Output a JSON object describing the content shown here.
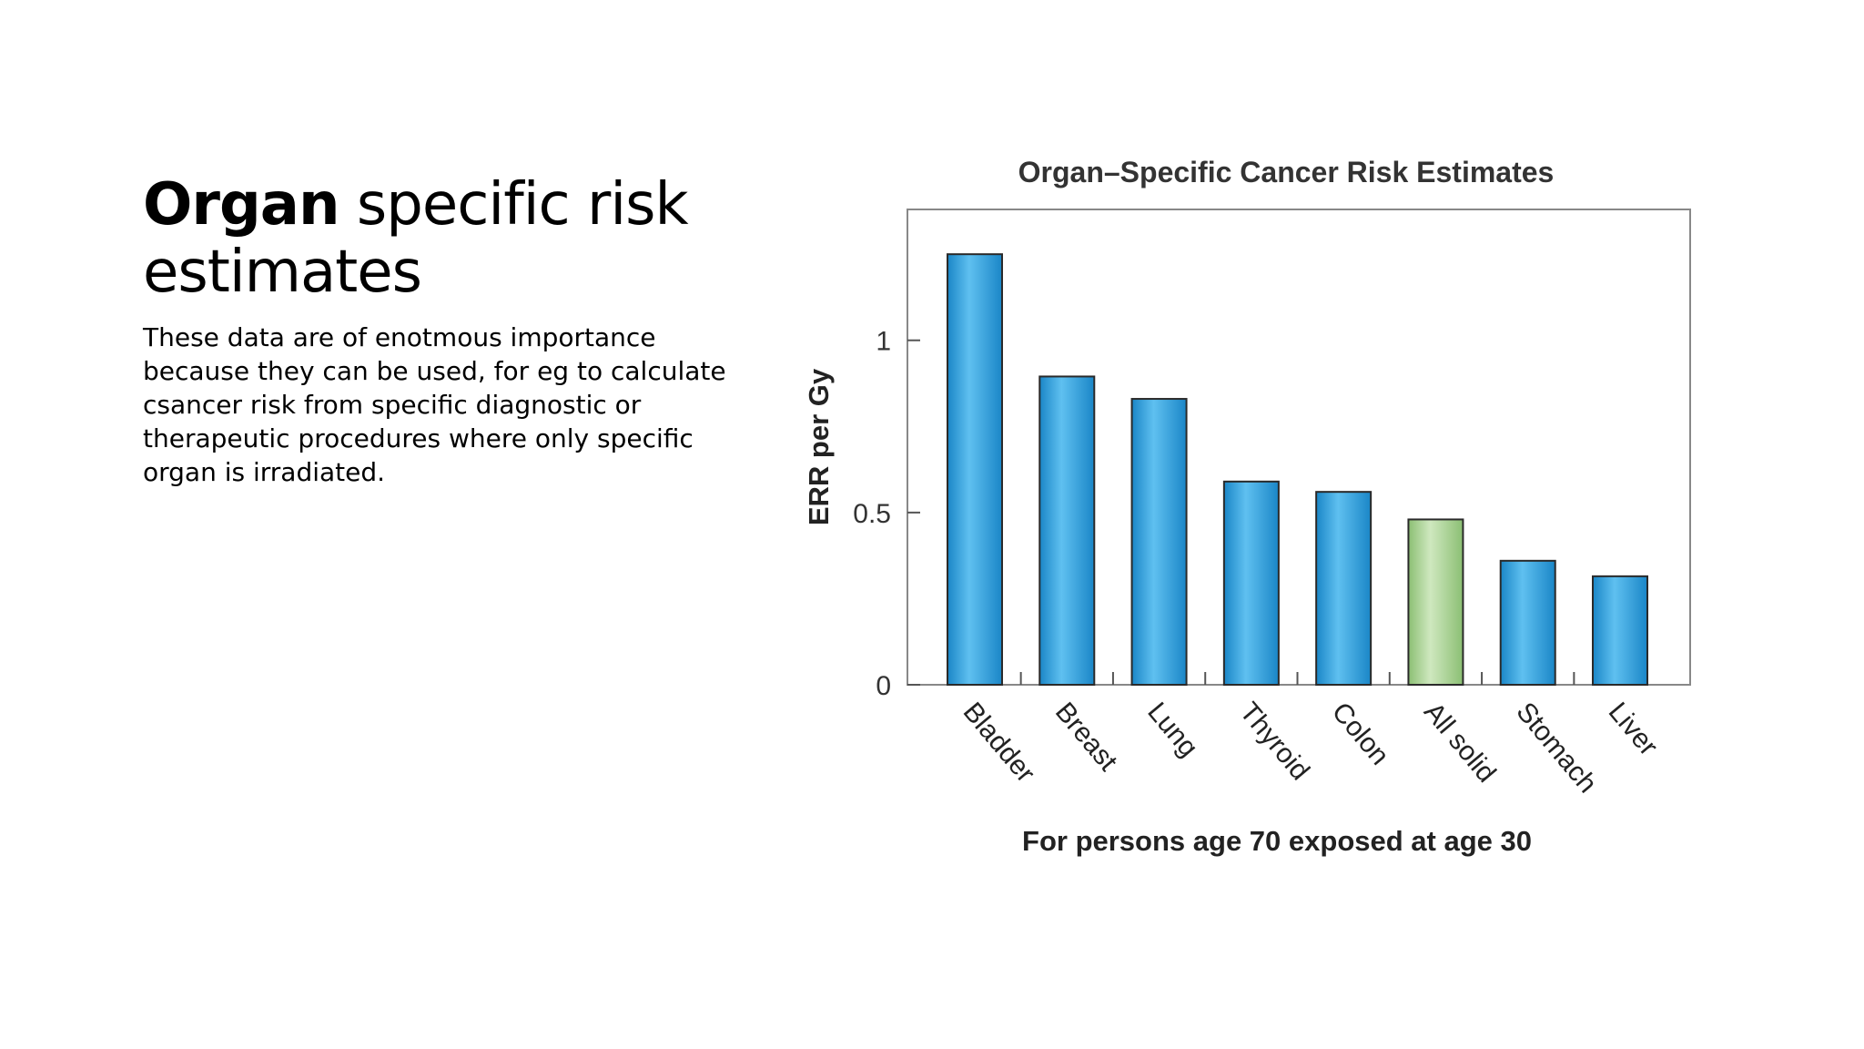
{
  "slide": {
    "title_bold": "Organ",
    "title_rest": " specific risk estimates",
    "body": "These data are of enotmous importance because they can be used, for eg to calculate csancer risk from specific diagnostic or therapeutic procedures where only specific organ is irradiated."
  },
  "chart_data": {
    "type": "bar",
    "title": "Organ–Specific Cancer Risk Estimates",
    "xlabel": "For persons age 70 exposed at age 30",
    "ylabel": "ERR per Gy",
    "categories": [
      "Bladder",
      "Breast",
      "Lung",
      "Thyroid",
      "Colon",
      "All solid",
      "Stomach",
      "Liver"
    ],
    "values": [
      1.25,
      0.895,
      0.83,
      0.59,
      0.56,
      0.48,
      0.36,
      0.315
    ],
    "bar_colors": [
      "#2a9fdc",
      "#2a9fdc",
      "#2a9fdc",
      "#2a9fdc",
      "#2a9fdc",
      "#9ccd84",
      "#2a9fdc",
      "#2a9fdc"
    ],
    "yticks": [
      {
        "value": 0,
        "label": "0"
      },
      {
        "value": 0.5,
        "label": "0.5"
      },
      {
        "value": 1,
        "label": "1"
      }
    ],
    "ylim": [
      0,
      1.38
    ],
    "grid": false,
    "legend": "none"
  }
}
